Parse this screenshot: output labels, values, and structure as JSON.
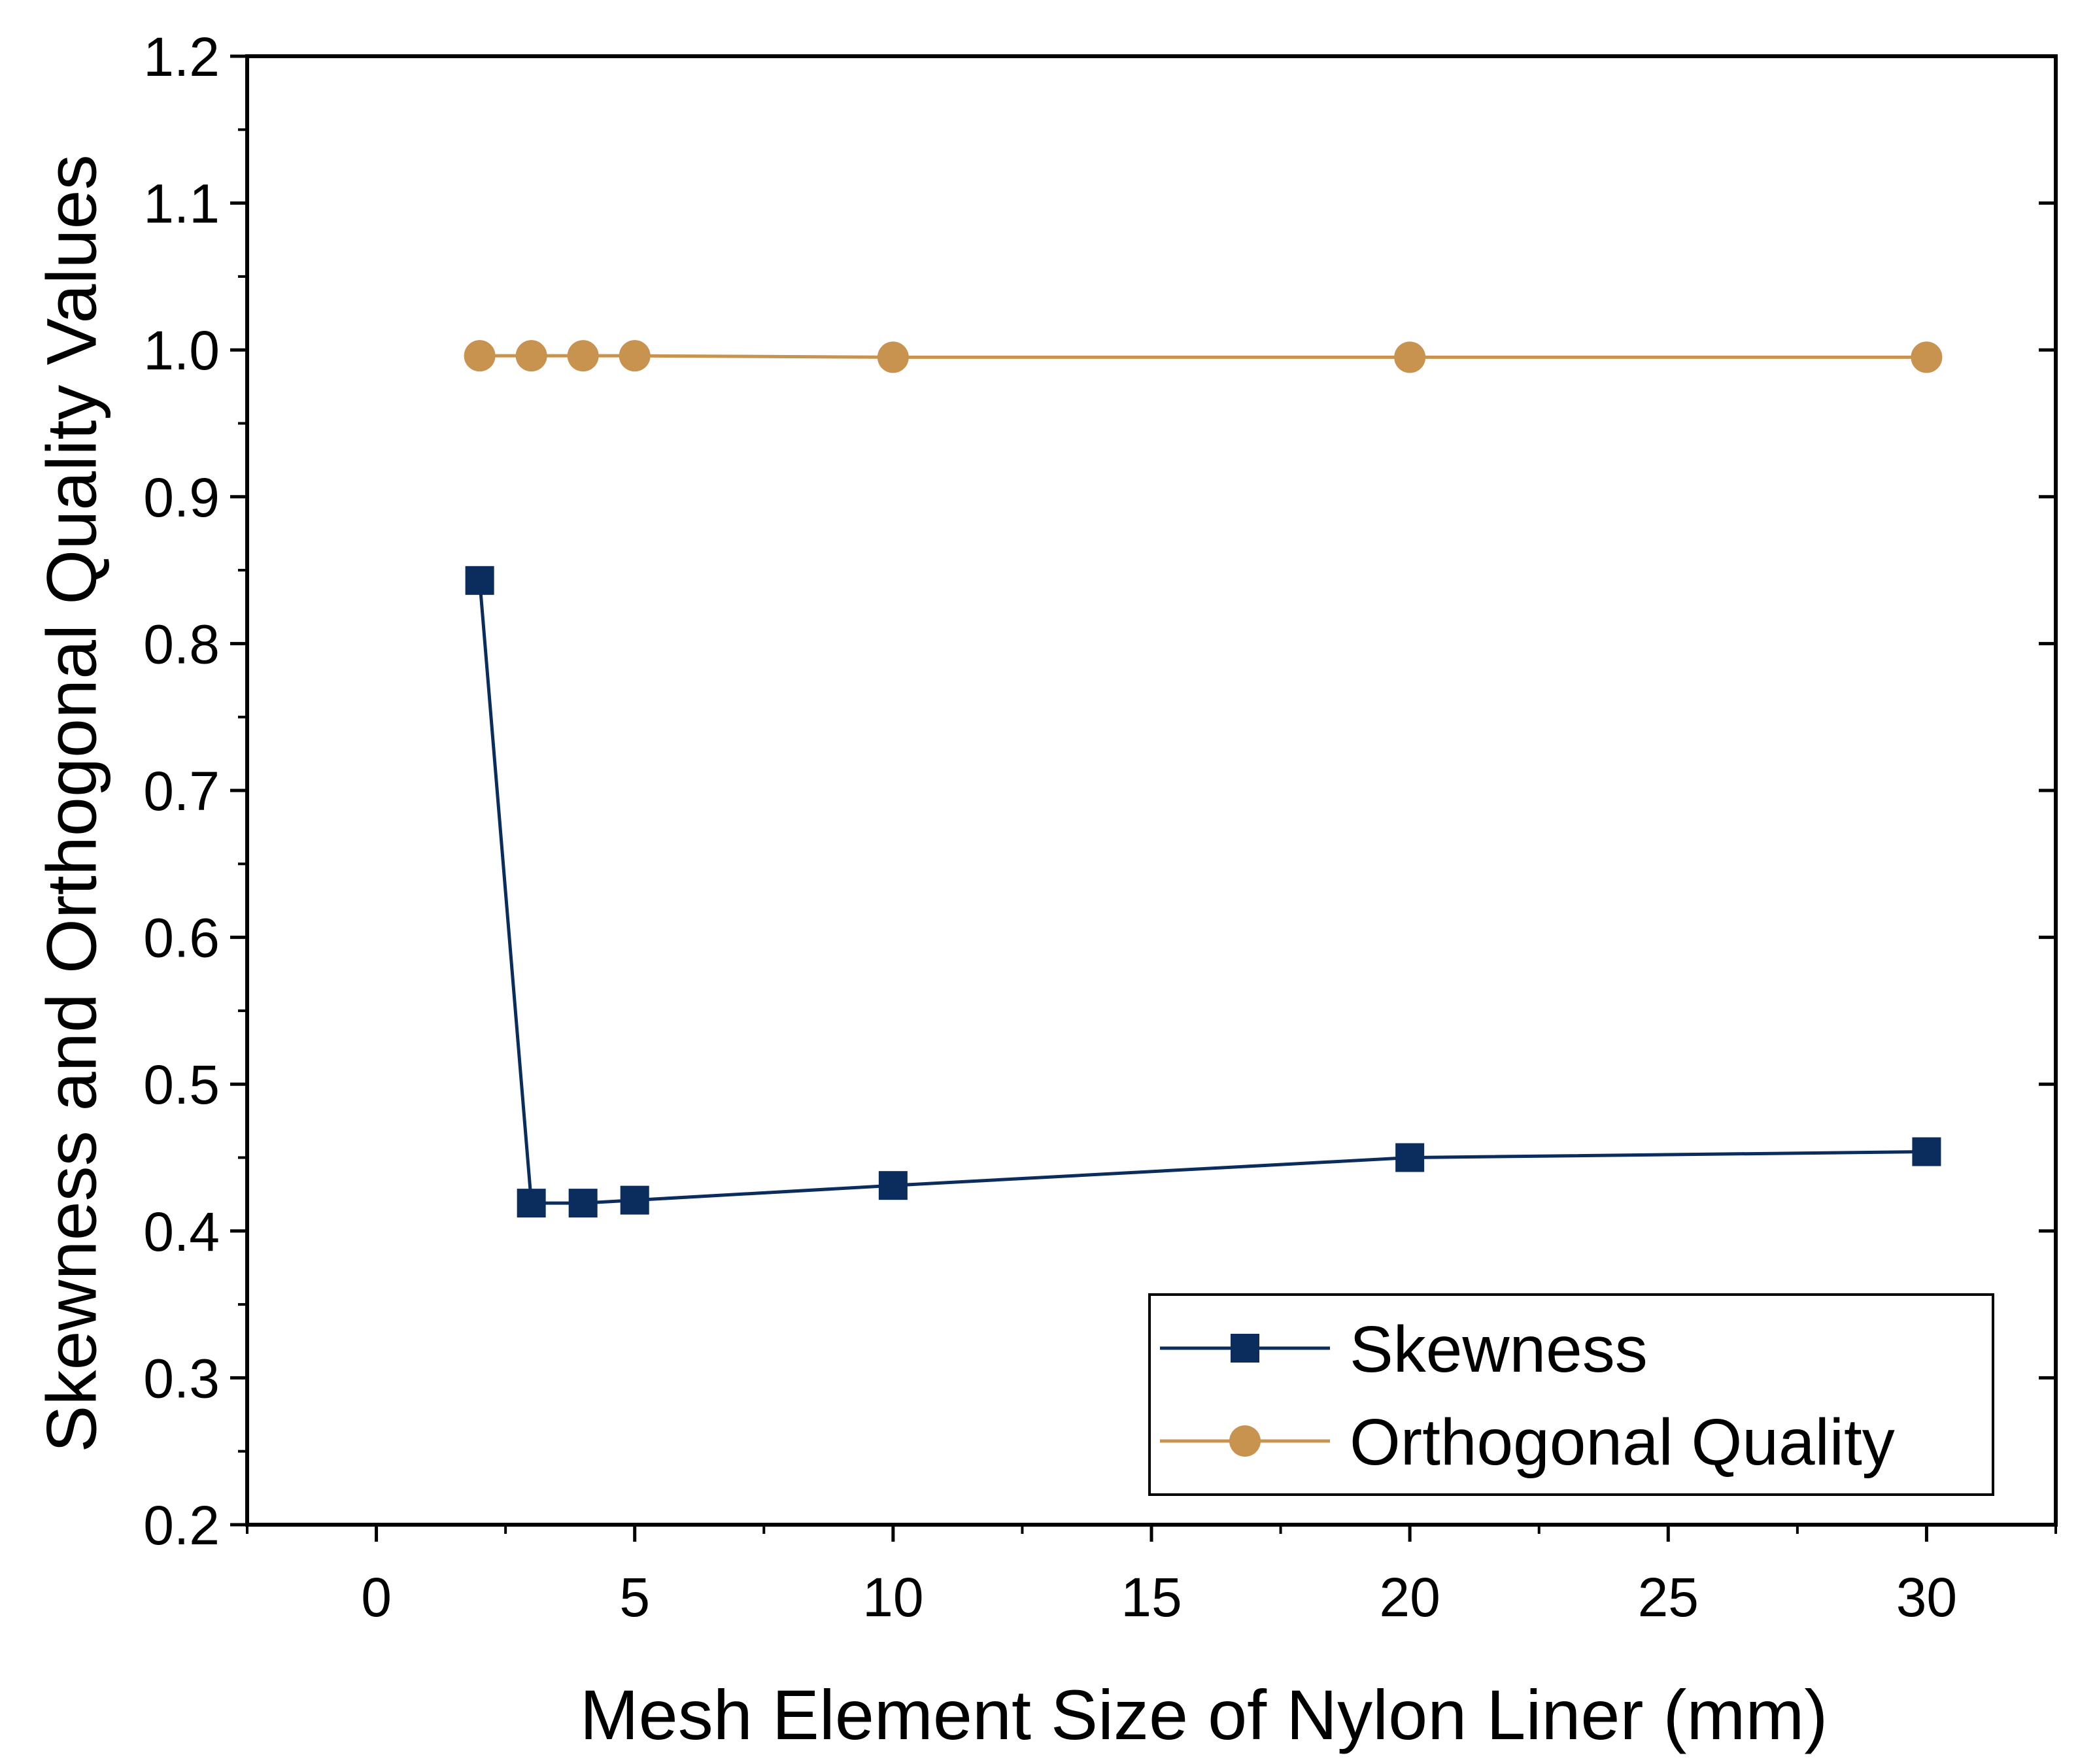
{
  "chart_data": {
    "type": "line",
    "title": "",
    "xlabel": "Mesh Element Size of Nylon Liner (mm)",
    "ylabel": "Skewness and Orthogonal Quality Values",
    "xlim": [
      -2.5,
      32.5
    ],
    "ylim": [
      0.2,
      1.2
    ],
    "xticks": [
      0,
      5,
      10,
      15,
      20,
      25,
      30
    ],
    "xtick_labels": [
      "0",
      "5",
      "10",
      "15",
      "20",
      "25",
      "30"
    ],
    "yticks": [
      0.2,
      0.3,
      0.4,
      0.5,
      0.6,
      0.7,
      0.8,
      0.9,
      1.0,
      1.1,
      1.2
    ],
    "ytick_labels": [
      "0.2",
      "0.3",
      "0.4",
      "0.5",
      "0.6",
      "0.7",
      "0.8",
      "0.9",
      "1.0",
      "1.1",
      "1.2"
    ],
    "x_minor_step": 2.5,
    "y_minor_step": 0.05,
    "grid": false,
    "legend_position": "bottom-right",
    "series": [
      {
        "name": "Skewness",
        "marker": "square",
        "color": "#0b2d5e",
        "x": [
          2,
          3,
          4,
          5,
          10,
          20,
          30
        ],
        "values": [
          0.843,
          0.419,
          0.419,
          0.421,
          0.431,
          0.45,
          0.454
        ]
      },
      {
        "name": "Orthogonal Quality",
        "marker": "circle",
        "color": "#c8924f",
        "x": [
          2,
          3,
          4,
          5,
          10,
          20,
          30
        ],
        "values": [
          0.996,
          0.996,
          0.996,
          0.996,
          0.995,
          0.995,
          0.995
        ]
      }
    ]
  }
}
